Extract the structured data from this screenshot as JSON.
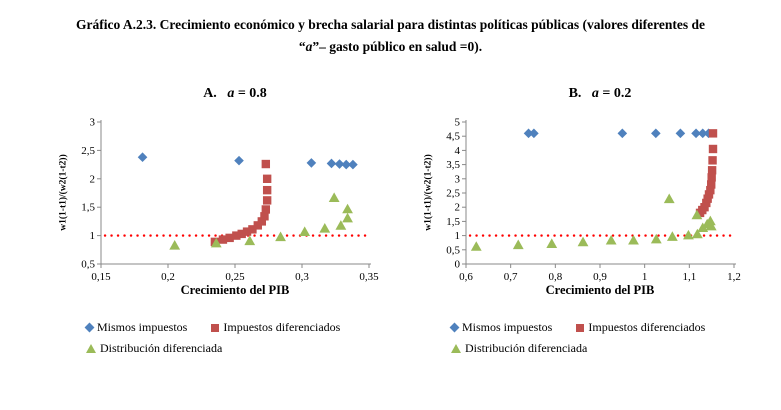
{
  "page": {
    "title_line1": "Gráfico A.2.3. Crecimiento económico y brecha salarial para distintas políticas públicas  (valores diferentes de",
    "title_l2_open": "“",
    "title_l2_var": "a",
    "title_l2_rest": "”– gasto público en salud =0)."
  },
  "colors": {
    "series_blue": "#4F81BD",
    "series_red": "#C0504D",
    "series_green": "#9BBB59",
    "refline_red": "#FF0000",
    "axis_gray": "#898989"
  },
  "legend": {
    "items": [
      {
        "label": "Mismos impuestos",
        "marker": "diamond",
        "color": "#4F81BD"
      },
      {
        "label": "Impuestos diferenciados",
        "marker": "square",
        "color": "#C0504D"
      },
      {
        "label": "Distribución diferenciada",
        "marker": "triangle",
        "color": "#9BBB59"
      }
    ]
  },
  "chart_data": [
    {
      "type": "scatter",
      "panel_label": "A.",
      "panel_var": "a",
      "panel_eq": " = 0.8",
      "xlabel": "Crecimiento del PIB",
      "ylabel": "w1(1-t1)/(w2(1-t2))",
      "xlim": [
        0.15,
        0.35
      ],
      "ylim": [
        0.5,
        3
      ],
      "grid": false,
      "legend_position": "bottom",
      "xticks": [
        {
          "v": 0.15,
          "label": "0,15"
        },
        {
          "v": 0.2,
          "label": "0,2"
        },
        {
          "v": 0.25,
          "label": "0,25"
        },
        {
          "v": 0.3,
          "label": "0,3"
        },
        {
          "v": 0.35,
          "label": "0,35"
        }
      ],
      "yticks": [
        {
          "v": 0.5,
          "label": "0,5"
        },
        {
          "v": 1,
          "label": "1"
        },
        {
          "v": 1.5,
          "label": "1,5"
        },
        {
          "v": 2,
          "label": "2"
        },
        {
          "v": 2.5,
          "label": "2,5"
        },
        {
          "v": 3,
          "label": "3"
        }
      ],
      "refline_y": 1,
      "refline_color": "#FF0000",
      "series": [
        {
          "name": "Mismos impuestos",
          "marker": "diamond",
          "color": "#4F81BD",
          "points": [
            [
              0.181,
              2.38
            ],
            [
              0.253,
              2.32
            ],
            [
              0.307,
              2.28
            ],
            [
              0.322,
              2.27
            ],
            [
              0.328,
              2.26
            ],
            [
              0.333,
              2.25
            ],
            [
              0.338,
              2.25
            ]
          ]
        },
        {
          "name": "Impuestos diferenciados",
          "marker": "square",
          "color": "#C0504D",
          "points": [
            [
              0.235,
              0.89
            ],
            [
              0.241,
              0.93
            ],
            [
              0.246,
              0.96
            ],
            [
              0.251,
              1.0
            ],
            [
              0.255,
              1.03
            ],
            [
              0.259,
              1.07
            ],
            [
              0.263,
              1.11
            ],
            [
              0.267,
              1.18
            ],
            [
              0.27,
              1.25
            ],
            [
              0.272,
              1.34
            ],
            [
              0.273,
              1.46
            ],
            [
              0.274,
              1.62
            ],
            [
              0.274,
              1.8
            ],
            [
              0.274,
              2.0
            ],
            [
              0.273,
              2.26
            ]
          ]
        },
        {
          "name": "Distribución diferenciada",
          "marker": "triangle",
          "color": "#9BBB59",
          "points": [
            [
              0.205,
              0.83
            ],
            [
              0.236,
              0.87
            ],
            [
              0.261,
              0.91
            ],
            [
              0.284,
              0.98
            ],
            [
              0.302,
              1.07
            ],
            [
              0.317,
              1.13
            ],
            [
              0.329,
              1.18
            ],
            [
              0.334,
              1.31
            ],
            [
              0.334,
              1.47
            ],
            [
              0.324,
              1.67
            ]
          ]
        }
      ]
    },
    {
      "type": "scatter",
      "panel_label": "B.",
      "panel_var": "a",
      "panel_eq": " = 0.2",
      "xlabel": "Crecimiento del PIB",
      "ylabel": "w1(1-t1)/(w2(1-t2))",
      "xlim": [
        0.6,
        1.2
      ],
      "ylim": [
        0,
        5
      ],
      "grid": false,
      "legend_position": "bottom",
      "xticks": [
        {
          "v": 0.6,
          "label": "0,6"
        },
        {
          "v": 0.7,
          "label": "0,7"
        },
        {
          "v": 0.8,
          "label": "0,8"
        },
        {
          "v": 0.9,
          "label": "0,9"
        },
        {
          "v": 1,
          "label": "1"
        },
        {
          "v": 1.1,
          "label": "1,1"
        },
        {
          "v": 1.2,
          "label": "1,2"
        }
      ],
      "yticks": [
        {
          "v": 0,
          "label": "0"
        },
        {
          "v": 0.5,
          "label": "0,5"
        },
        {
          "v": 1,
          "label": "1"
        },
        {
          "v": 1.5,
          "label": "1,5"
        },
        {
          "v": 2,
          "label": "2"
        },
        {
          "v": 2.5,
          "label": "2,5"
        },
        {
          "v": 3,
          "label": "3"
        },
        {
          "v": 3.5,
          "label": "3,5"
        },
        {
          "v": 4,
          "label": "4"
        },
        {
          "v": 4.5,
          "label": "4,5"
        },
        {
          "v": 5,
          "label": "5"
        }
      ],
      "refline_y": 1,
      "refline_color": "#FF0000",
      "series": [
        {
          "name": "Mismos impuestos",
          "marker": "diamond",
          "color": "#4F81BD",
          "points": [
            [
              0.74,
              4.6
            ],
            [
              0.752,
              4.6
            ],
            [
              0.95,
              4.6
            ],
            [
              1.025,
              4.6
            ],
            [
              1.08,
              4.6
            ],
            [
              1.115,
              4.6
            ],
            [
              1.13,
              4.6
            ],
            [
              1.143,
              4.6
            ]
          ]
        },
        {
          "name": "Impuestos diferenciados",
          "marker": "square",
          "color": "#C0504D",
          "points": [
            [
              1.124,
              1.8
            ],
            [
              1.129,
              1.9
            ],
            [
              1.134,
              2.0
            ],
            [
              1.138,
              2.15
            ],
            [
              1.141,
              2.3
            ],
            [
              1.144,
              2.45
            ],
            [
              1.147,
              2.6
            ],
            [
              1.149,
              2.8
            ],
            [
              1.15,
              3.05
            ],
            [
              1.151,
              3.3
            ],
            [
              1.152,
              3.65
            ],
            [
              1.153,
              4.05
            ],
            [
              1.153,
              4.6
            ]
          ]
        },
        {
          "name": "Distribución diferenciada",
          "marker": "triangle",
          "color": "#9BBB59",
          "points": [
            [
              0.623,
              0.62
            ],
            [
              0.717,
              0.68
            ],
            [
              0.792,
              0.72
            ],
            [
              0.862,
              0.78
            ],
            [
              0.925,
              0.84
            ],
            [
              0.975,
              0.84
            ],
            [
              1.026,
              0.88
            ],
            [
              1.062,
              0.97
            ],
            [
              1.055,
              2.3
            ],
            [
              1.098,
              1.02
            ],
            [
              1.118,
              1.06
            ],
            [
              1.117,
              1.73
            ],
            [
              1.13,
              1.28
            ],
            [
              1.14,
              1.41
            ],
            [
              1.149,
              1.34
            ],
            [
              1.147,
              1.52
            ]
          ]
        }
      ]
    }
  ]
}
